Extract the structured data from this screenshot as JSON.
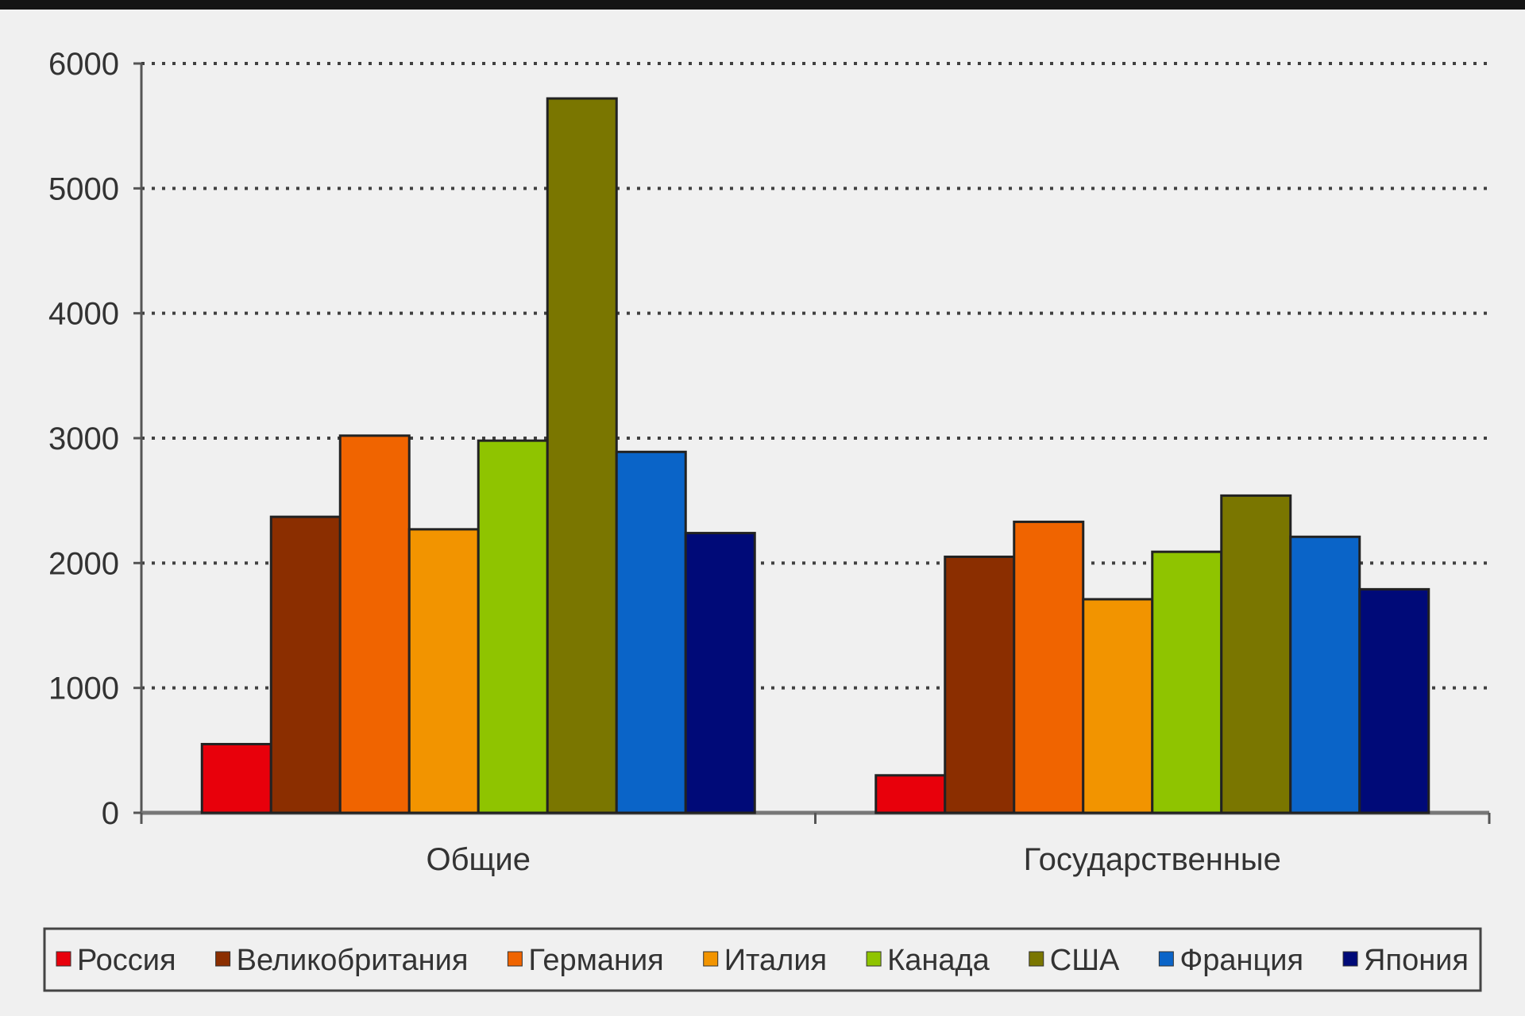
{
  "chart_data": {
    "type": "bar",
    "title": "",
    "xlabel": "",
    "ylabel": "",
    "ylim": [
      0,
      6000
    ],
    "yticks": [
      0,
      1000,
      2000,
      3000,
      4000,
      5000,
      6000
    ],
    "ytick_labels": [
      "0",
      "1000",
      "2000",
      "3000",
      "4000",
      "5000",
      "6000"
    ],
    "categories": [
      "Общие",
      "Государственные"
    ],
    "grid": true,
    "legend_position": "bottom",
    "series": [
      {
        "name": "Россия",
        "color": "#e8000b",
        "values": [
          550,
          300
        ]
      },
      {
        "name": "Великобритания",
        "color": "#8b2e00",
        "values": [
          2370,
          2050
        ]
      },
      {
        "name": "Германия",
        "color": "#f06400",
        "values": [
          3020,
          2330
        ]
      },
      {
        "name": "Италия",
        "color": "#f29400",
        "values": [
          2270,
          1710
        ]
      },
      {
        "name": "Канада",
        "color": "#8fc400",
        "values": [
          2980,
          2090
        ]
      },
      {
        "name": "США",
        "color": "#7a7600",
        "values": [
          5720,
          2540
        ]
      },
      {
        "name": "Франция",
        "color": "#0a64c8",
        "values": [
          2890,
          2210
        ]
      },
      {
        "name": "Япония",
        "color": "#000a78",
        "values": [
          2240,
          1790
        ]
      }
    ]
  }
}
